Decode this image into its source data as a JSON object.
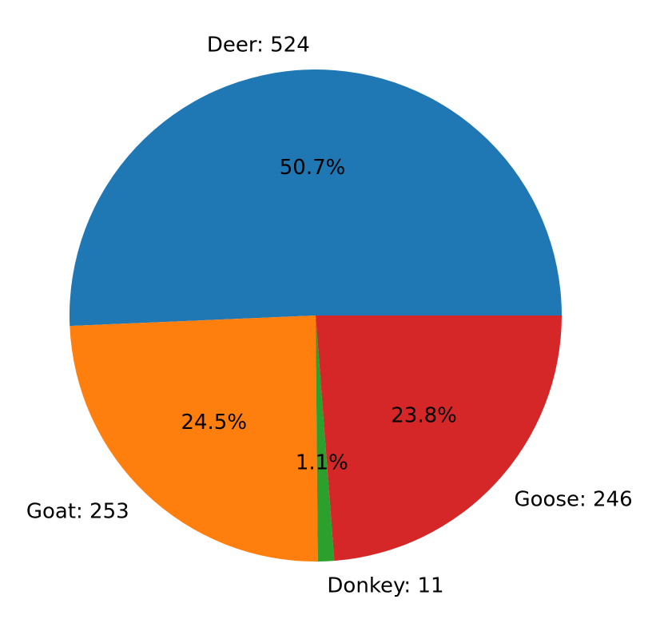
{
  "chart_data": {
    "type": "pie",
    "title": "",
    "start_angle_deg": 0,
    "direction": "counterclockwise",
    "slices": [
      {
        "label": "Deer: 524",
        "category": "Deer",
        "value": 524,
        "percent_label": "50.7%",
        "color": "#1f77b4"
      },
      {
        "label": "Goat: 253",
        "category": "Goat",
        "value": 253,
        "percent_label": "24.5%",
        "color": "#ff7f0e"
      },
      {
        "label": "Donkey: 11",
        "category": "Donkey",
        "value": 11,
        "percent_label": "1.1%",
        "color": "#2ca02c"
      },
      {
        "label": "Goose: 246",
        "category": "Goose",
        "value": 246,
        "percent_label": "23.8%",
        "color": "#d62728"
      }
    ]
  }
}
